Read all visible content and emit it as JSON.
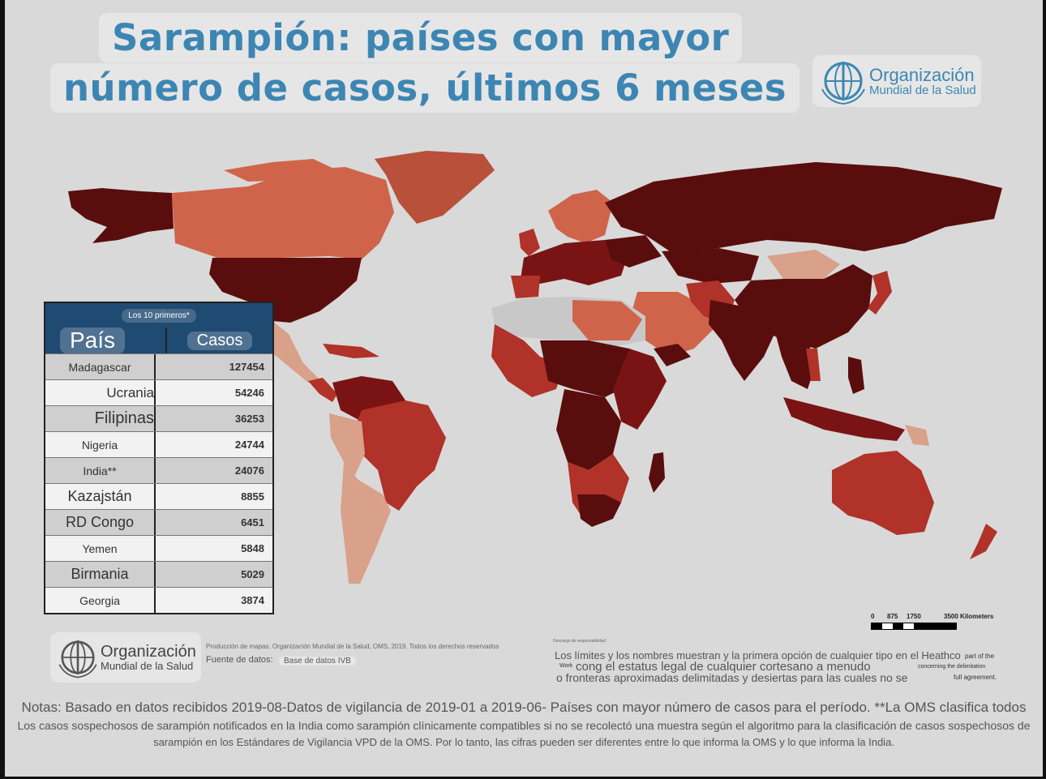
{
  "title": {
    "line1": "Sarampión: países con mayor",
    "line2": "número de casos, últimos 6 meses"
  },
  "who_logo": {
    "line1": "Organización",
    "line2": "Mundial de la Salud",
    "icon": "who-emblem-icon"
  },
  "table": {
    "caption": "Los 10 primeros*",
    "col_country": "País",
    "col_cases": "Casos",
    "rows": [
      {
        "country": "Madagascar",
        "cases": "127454"
      },
      {
        "country": "Ucrania",
        "cases": "54246"
      },
      {
        "country": "Filipinas",
        "cases": "36253"
      },
      {
        "country": "Nigeria",
        "cases": "24744"
      },
      {
        "country": "India**",
        "cases": "24076"
      },
      {
        "country": "Kazajstán",
        "cases": "8855"
      },
      {
        "country": "RD Congo",
        "cases": "6451"
      },
      {
        "country": "Yemen",
        "cases": "5848"
      },
      {
        "country": "Birmania",
        "cases": "5029"
      },
      {
        "country": "Georgia",
        "cases": "3874"
      }
    ]
  },
  "scale": {
    "ticks": [
      "0",
      "875",
      "1750",
      "3500 Kilometers"
    ]
  },
  "footer": {
    "production": "Producción de mapas: Organización Mundial de la Salud, OMS, 2019. Todos los derechos reservados",
    "source_label": "Fuente de datos:",
    "source_value": "Base de datos IVB",
    "disclaimer_title": "Descargo de responsabilidad",
    "disclaimer_line1": "Los límites y los nombres muestran y la primera opción de cualquier tipo en el Heathco",
    "disclaimer_line2": "cong el estatus legal de cualquier cortesano a menudo",
    "disclaimer_line3": "o fronteras aproximadas delimitadas y desiertas para las cuales no se",
    "disclaimer_side1": "part of the",
    "disclaimer_side2": "concerning the delimitation",
    "disclaimer_side3": "full agreement.",
    "disclaimer_left_small": "Work"
  },
  "notes": {
    "line1": "Notas: Basado en datos recibidos 2019-08-Datos de vigilancia de 2019-01 a 2019-06- Países con mayor número de casos para el período. **La OMS clasifica todos",
    "line2": "Los casos sospechosos de sarampión notificados en la India como sarampión clínicamente compatibles si no se recolectó una muestra según el algoritmo para la clasificación de casos sospechosos de",
    "line3": "sarampión en los Estándares de Vigilancia VPD de la OMS. Por lo tanto, las cifras pueden ser diferentes entre lo que informa la OMS y lo que informa la India."
  },
  "colors": {
    "darkest": "#5a0d0d",
    "dark": "#7a1414",
    "medium": "#b03228",
    "light": "#d0644a",
    "lightest": "#d9a08a",
    "no_data": "#c8c8c8",
    "table_header": "#1f4a72",
    "title": "#3d86b3"
  }
}
